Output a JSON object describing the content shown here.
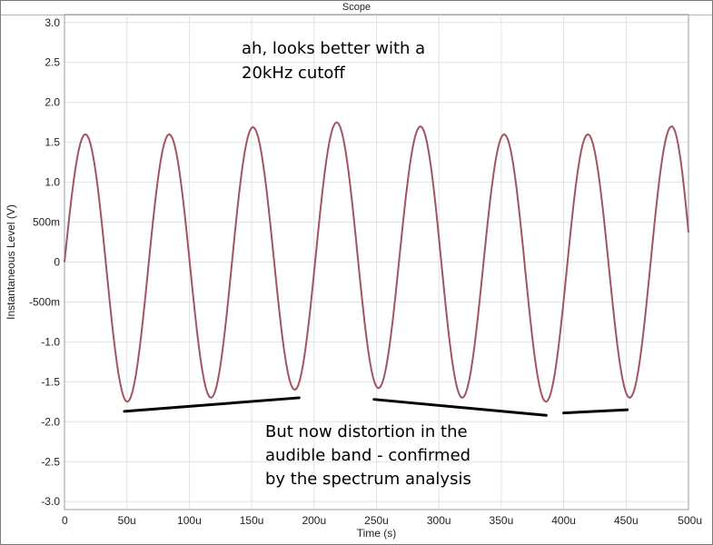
{
  "window": {
    "title": "Scope"
  },
  "chart_data": {
    "type": "line",
    "title": "",
    "xlabel": "Time (s)",
    "ylabel": "Instantaneous Level (V)",
    "xlim": [
      0,
      0.0005
    ],
    "ylim": [
      -3.1,
      3.1
    ],
    "grid": true,
    "x_ticks": [
      0,
      5e-05,
      0.0001,
      0.00015,
      0.0002,
      0.00025,
      0.0003,
      0.00035,
      0.0004,
      0.00045,
      0.0005
    ],
    "x_tick_labels": [
      "0",
      "50u",
      "100u",
      "150u",
      "200u",
      "250u",
      "300u",
      "350u",
      "400u",
      "450u",
      "500u"
    ],
    "y_ticks": [
      3.0,
      2.5,
      2.0,
      1.5,
      1.0,
      0.5,
      0,
      -0.5,
      -1.0,
      -1.5,
      -2.0,
      -2.5,
      -3.0
    ],
    "y_tick_labels": [
      "3.0",
      "2.5",
      "2.0",
      "1.5",
      "1.0",
      "500m",
      "0",
      "-500m",
      "-1.0",
      "-1.5",
      "-2.0",
      "-2.5",
      "-3.0"
    ],
    "series": [
      {
        "color": "#a15560",
        "x": [
          0,
          1.68e-05,
          5.03e-05,
          8.39e-05,
          0.0001174,
          0.000151,
          0.0001845,
          0.0002181,
          0.0002516,
          0.0002852,
          0.0003187,
          0.0003523,
          0.0003858,
          0.0004194,
          0.0004529,
          0.0004865,
          0.0005
        ],
        "y": [
          0,
          1.6,
          -1.75,
          1.6,
          -1.7,
          1.69,
          -1.6,
          1.75,
          -1.58,
          1.7,
          -1.7,
          1.6,
          -1.75,
          1.6,
          -1.7,
          1.7,
          0.25
        ]
      }
    ],
    "annotations": [
      {
        "lines": [
          "ah, looks better with a",
          "20kHz cutoff"
        ]
      },
      {
        "lines": [
          "But now distortion in the",
          "audible band - confirmed",
          "by the spectrum analysis"
        ]
      }
    ],
    "marker_lines": [
      {
        "x1": 4.8e-05,
        "y1": -1.87,
        "x2": 0.000188,
        "y2": -1.7
      },
      {
        "x1": 0.000248,
        "y1": -1.72,
        "x2": 0.000386,
        "y2": -1.92
      },
      {
        "x1": 0.0004,
        "y1": -1.89,
        "x2": 0.000451,
        "y2": -1.85
      }
    ]
  }
}
